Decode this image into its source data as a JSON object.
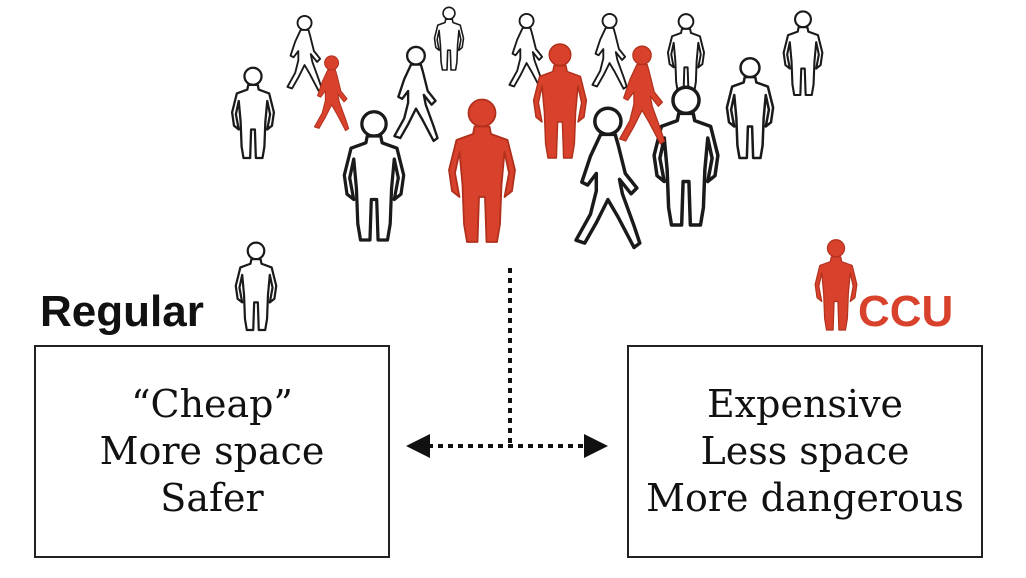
{
  "colors": {
    "accent": "#d8412b",
    "outline": "#1a1a1a",
    "background": "#ffffff"
  },
  "regular": {
    "title": "Regular",
    "icon": "person-outline-icon",
    "lines": [
      "“Cheap”",
      "More space",
      "Safer"
    ]
  },
  "ccu": {
    "title": "CCU",
    "icon": "person-red-icon",
    "lines": [
      "Expensive",
      "Less space",
      "More dangerous"
    ]
  },
  "crowd": {
    "people_icon": "person-figure-icon"
  },
  "connector": {
    "icon": "double-arrow-icon"
  }
}
